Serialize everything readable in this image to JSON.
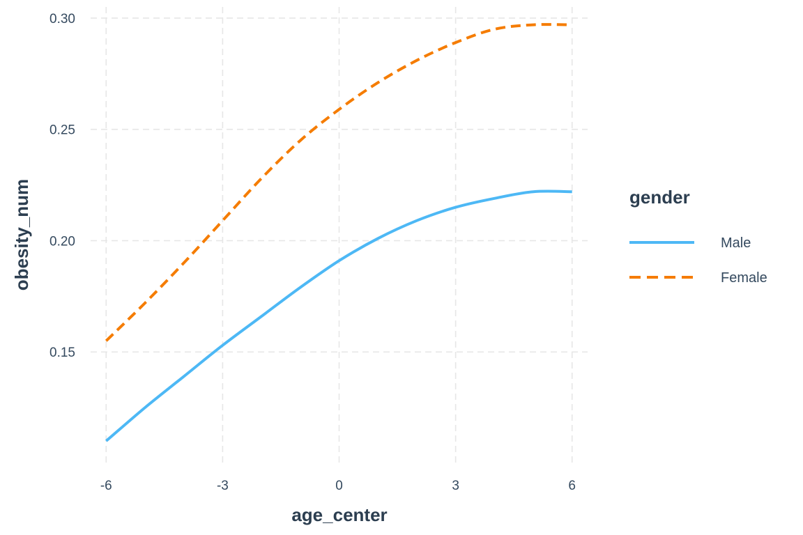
{
  "chart_data": {
    "type": "line",
    "xlabel": "age_center",
    "ylabel": "obesity_num",
    "xlim": [
      -6.4,
      6.4
    ],
    "ylim": [
      0.1,
      0.305
    ],
    "x_ticks": [
      -6,
      -3,
      0,
      3,
      6
    ],
    "x_tick_labels": [
      "-6",
      "-3",
      "0",
      "3",
      "6"
    ],
    "y_ticks": [
      0.15,
      0.2,
      0.25,
      0.3
    ],
    "y_tick_labels": [
      "0.15",
      "0.20",
      "0.25",
      "0.30"
    ],
    "grid": true,
    "legend": {
      "title": "gender",
      "placement": "right"
    },
    "series": [
      {
        "name": "Male",
        "color": "#4db8f5",
        "dash": "solid",
        "x": [
          -6,
          -5,
          -4,
          -3,
          -2,
          -1,
          0,
          1,
          2,
          3,
          4,
          5,
          6
        ],
        "values": [
          0.11,
          0.125,
          0.139,
          0.153,
          0.166,
          0.179,
          0.191,
          0.201,
          0.209,
          0.215,
          0.219,
          0.222,
          0.222
        ]
      },
      {
        "name": "Female",
        "color": "#f57c00",
        "dash": "dashed",
        "x": [
          -6,
          -5,
          -4,
          -3,
          -2,
          -1,
          0,
          1,
          2,
          3,
          4,
          5,
          6
        ],
        "values": [
          0.155,
          0.172,
          0.19,
          0.209,
          0.228,
          0.245,
          0.259,
          0.271,
          0.281,
          0.289,
          0.295,
          0.297,
          0.297
        ]
      }
    ]
  }
}
